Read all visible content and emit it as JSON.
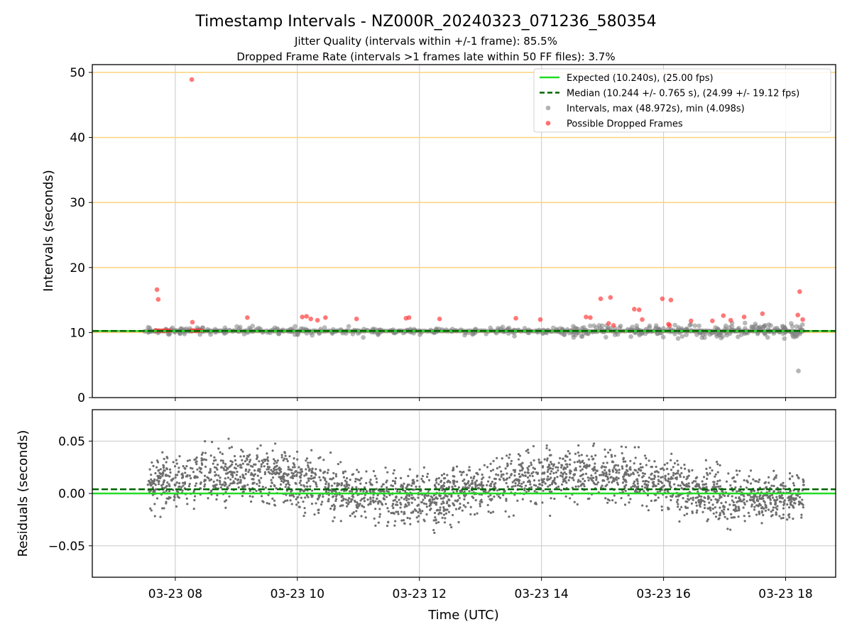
{
  "chart_data": [
    {
      "panel": "intervals",
      "type": "scatter",
      "title": "Timestamp Intervals - NZ000R_20240323_071236_580354",
      "subtitle_1": "Jitter Quality (intervals within +/-1 frame): 85.5%",
      "subtitle_2": "Dropped Frame Rate (intervals >1 frames late within 50 FF files): 3.7%",
      "ylabel": "Intervals (seconds)",
      "ylim": [
        0,
        51.2
      ],
      "yticks": [
        0,
        10,
        20,
        30,
        40,
        50
      ],
      "xlim_hours": [
        6.64,
        18.82
      ],
      "grid": "vertical at x ticks; horizontal orange lines at 10,20,30,40,50",
      "legend_position": "top-right",
      "legend": [
        "Expected (10.240s), (25.00 fps)",
        "Median (10.244 +/- 0.765 s), (24.99 +/- 19.12 fps)",
        "Intervals, max (48.972s), min (4.098s)",
        "Possible Dropped Frames"
      ],
      "expected_interval": 10.24,
      "median_interval": 10.244,
      "colors": {
        "expected": "#22dd22",
        "median": "#006400",
        "intervals": "#808080",
        "dropped": "#ff3030",
        "gridlines": "#ffd37a"
      },
      "dropped_points": [
        [
          7.7,
          16.6
        ],
        [
          7.72,
          15.1
        ],
        [
          7.68,
          10.3
        ],
        [
          7.73,
          10.3
        ],
        [
          7.78,
          10.3
        ],
        [
          7.82,
          10.3
        ],
        [
          7.86,
          10.3
        ],
        [
          7.9,
          10.3
        ],
        [
          8.28,
          11.6
        ],
        [
          8.26,
          10.3
        ],
        [
          8.3,
          10.3
        ],
        [
          8.34,
          10.3
        ],
        [
          8.38,
          10.3
        ],
        [
          8.42,
          10.3
        ],
        [
          8.27,
          48.9
        ],
        [
          9.18,
          12.3
        ],
        [
          10.08,
          12.4
        ],
        [
          10.15,
          12.5
        ],
        [
          10.22,
          12.1
        ],
        [
          10.33,
          11.9
        ],
        [
          10.46,
          12.3
        ],
        [
          10.97,
          12.1
        ],
        [
          11.78,
          12.2
        ],
        [
          11.83,
          12.3
        ],
        [
          12.33,
          12.1
        ],
        [
          13.58,
          12.2
        ],
        [
          13.98,
          12.0
        ],
        [
          14.73,
          12.4
        ],
        [
          14.8,
          12.3
        ],
        [
          14.97,
          15.2
        ],
        [
          15.1,
          11.4
        ],
        [
          15.13,
          15.4
        ],
        [
          15.18,
          11.1
        ],
        [
          15.52,
          13.6
        ],
        [
          15.6,
          13.5
        ],
        [
          15.65,
          12.0
        ],
        [
          15.98,
          15.2
        ],
        [
          16.08,
          11.3
        ],
        [
          16.1,
          11.1
        ],
        [
          16.12,
          15.0
        ],
        [
          16.45,
          11.8
        ],
        [
          16.8,
          11.8
        ],
        [
          16.98,
          12.6
        ],
        [
          17.1,
          11.9
        ],
        [
          17.32,
          12.4
        ],
        [
          17.62,
          12.9
        ],
        [
          18.2,
          12.7
        ],
        [
          18.23,
          16.3
        ],
        [
          18.28,
          12.0
        ]
      ],
      "intervals_note": "several thousand grey interval points clustered at ~10.24 s with spread roughly 5.5–12 s"
    },
    {
      "panel": "residuals",
      "type": "scatter",
      "xlabel": "Time (UTC)",
      "ylabel": "Residuals (seconds)",
      "ylim": [
        -0.08,
        0.08
      ],
      "yticks": [
        -0.05,
        0.0,
        0.05
      ],
      "ytick_labels": [
        "−0.05",
        "0.00",
        "0.05"
      ],
      "xtick_hours": [
        8,
        10,
        12,
        14,
        16,
        18
      ],
      "xtick_labels": [
        "03-23 08",
        "03-23 10",
        "03-23 12",
        "03-23 14",
        "03-23 16",
        "03-23 18"
      ],
      "expected_residual": 0.0,
      "median_residual": 0.004,
      "grid": "both axes",
      "residuals_note": "dense grey residual points between about -0.08 and 0.08 s, mostly within -0.03 to 0.05 s"
    }
  ]
}
